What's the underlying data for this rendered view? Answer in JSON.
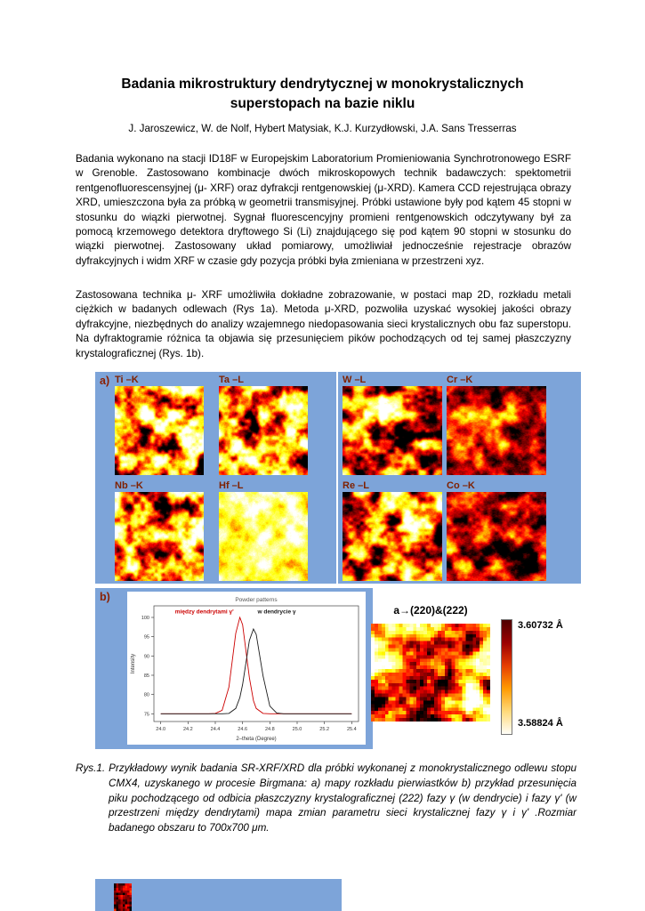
{
  "header": {
    "title_line1": "Badania mikrostruktury dendrytycznej w monokrystalicznych",
    "title_line2": "superstopach na bazie niklu",
    "authors": "J. Jaroszewicz, W. de Nolf, Hybert Matysiak, K.J. Kurzydłowski, J.A. Sans Tresserras"
  },
  "body": {
    "paragraph1": "Badania wykonano na stacji ID18F w Europejskim Laboratorium Promieniowania Synchrotronowego ESRF w Grenoble.  Zastosowano kombinacje dwóch mikroskopowych technik badawczych: spektometrii rentgenofluorescensyjnej (μ- XRF) oraz dyfrakcji rentgenowskiej (μ-XRD). Kamera CCD rejestrująca obrazy XRD, umieszczona była za próbką w geometrii transmisyjnej. Próbki ustawione były pod kątem 45 stopni w stosunku do wiązki pierwotnej. Sygnał fluorescencyjny promieni rentgenowskich odczytywany był za pomocą krzemowego detektora dryftowego Si (Li) znajdującego się pod kątem 90 stopni w stosunku do wiązki pierwotnej. Zastosowany układ pomiarowy, umożliwiał jednocześnie rejestracje obrazów dyfrakcyjnych i widm XRF w czasie gdy pozycja próbki była zmieniana w przestrzeni xyz.",
    "paragraph2": "Zastosowana technika μ- XRF umożliwiła dokładne zobrazowanie, w postaci map 2D, rozkładu metali ciężkich w badanych odlewach (Rys 1a).  Metoda μ-XRD, pozwoliła uzyskać wysokiej jakości obrazy dyfrakcyjne, niezbędnych do analizy wzajemnego niedopasowania sieci krystalicznych obu faz superstopu. Na dyfraktogramie różnica  ta objawia się przesunięciem pików pochodzących od tej samej płaszczyzny krystalograficznej (Rys. 1b)."
  },
  "figure": {
    "panel_bg_color": "#7da4d9",
    "panel_a": {
      "label": "a)"
    },
    "panel_b": {
      "label": "b)",
      "map_label": "a→(220)&(222)"
    },
    "maps": [
      {
        "label": "Ti –K",
        "seed": 11,
        "base": 0.56,
        "amp": 0.5
      },
      {
        "label": "Ta –L",
        "seed": 22,
        "base": 0.5,
        "amp": 0.5
      },
      {
        "label": "Nb –K",
        "seed": 33,
        "base": 0.53,
        "amp": 0.5
      },
      {
        "label": "Hf –L",
        "seed": 44,
        "base": 0.82,
        "amp": 0.22
      },
      {
        "label": "W –L",
        "seed": 55,
        "base": 0.4,
        "amp": 0.46
      },
      {
        "label": "Cr –K",
        "seed": 66,
        "base": 0.3,
        "amp": 0.3
      },
      {
        "label": "Re –L",
        "seed": 77,
        "base": 0.43,
        "amp": 0.46
      },
      {
        "label": "Co –K",
        "seed": 88,
        "base": 0.29,
        "amp": 0.32
      }
    ],
    "lattice_map": {
      "seed": 99,
      "base": 0.52,
      "amp": 0.42
    },
    "strip_thumb": {
      "seed": 123,
      "base": 0.2,
      "amp": 0.18
    },
    "colorbar": {
      "stops": [
        "#4f0000",
        "#9b0000",
        "#e63d00",
        "#ff9a00",
        "#ffd978",
        "#fffef8"
      ],
      "top_label": "3.60732 Å",
      "bottom_label": "3.58824 Å"
    }
  },
  "chart_data": {
    "type": "line",
    "title": "Powder patterns",
    "xlabel": "2–theta (Degree)",
    "ylabel": "Intensity",
    "xlim": [
      23.95,
      25.45
    ],
    "ylim": [
      73,
      103
    ],
    "xticks": [
      24.0,
      24.2,
      24.4,
      24.6,
      24.8,
      25.0,
      25.2,
      25.4
    ],
    "yticks": [
      75,
      80,
      85,
      90,
      95,
      100
    ],
    "grid": false,
    "legend_position": "none",
    "x": [
      24.0,
      24.05,
      24.1,
      24.15,
      24.2,
      24.25,
      24.3,
      24.35,
      24.4,
      24.45,
      24.5,
      24.55,
      24.58,
      24.6,
      24.65,
      24.68,
      24.7,
      24.75,
      24.8,
      24.85,
      24.9,
      24.95,
      25.0,
      25.05,
      25.1,
      25.15,
      25.2,
      25.25,
      25.3,
      25.35,
      25.4
    ],
    "series": [
      {
        "name": "między dendrytami γ'",
        "color": "#cc0000",
        "y": [
          75,
          75,
          75,
          75,
          75,
          75,
          75,
          75,
          75.1,
          75.9,
          81.9,
          95.9,
          100,
          98.1,
          84.4,
          78.4,
          76.4,
          75.1,
          75,
          75,
          75,
          75,
          75,
          75,
          75,
          75,
          75,
          75,
          75,
          75,
          75
        ]
      },
      {
        "name": "w dendrycie γ",
        "color": "#1a1a1a",
        "y": [
          75,
          75,
          75,
          75,
          75,
          75,
          75,
          75,
          75,
          75,
          75.1,
          76.4,
          79.2,
          82.6,
          94,
          97,
          95.6,
          84.8,
          77,
          75.2,
          75,
          75,
          75,
          75,
          75,
          75,
          75,
          75,
          75,
          75,
          75
        ]
      }
    ],
    "annotations": [
      {
        "text": "między dendrytami γ'",
        "color": "#cc0000",
        "x": 24.32,
        "y": 101
      },
      {
        "text": "w dendrycie γ",
        "color": "#1a1a1a",
        "x": 24.85,
        "y": 101
      }
    ]
  },
  "caption": {
    "text": "Rys.1. Przykładowy wynik badania SR-XRF/XRD dla próbki  wykonanej z monokrystalicznego odlewu stopu CMX4, uzyskanego w procesie Birgmana: a) mapy rozkładu pierwiastków b) przykład przesunięcia piku pochodzącego od odbicia płaszczyzny krystalograficznej (222) fazy γ (w dendrycie) i fazy γ' (w przestrzeni między dendrytami) mapa zmian parametru sieci krystalicznej fazy γ i γ' .Rozmiar badanego obszaru to  700x700 μm."
  }
}
